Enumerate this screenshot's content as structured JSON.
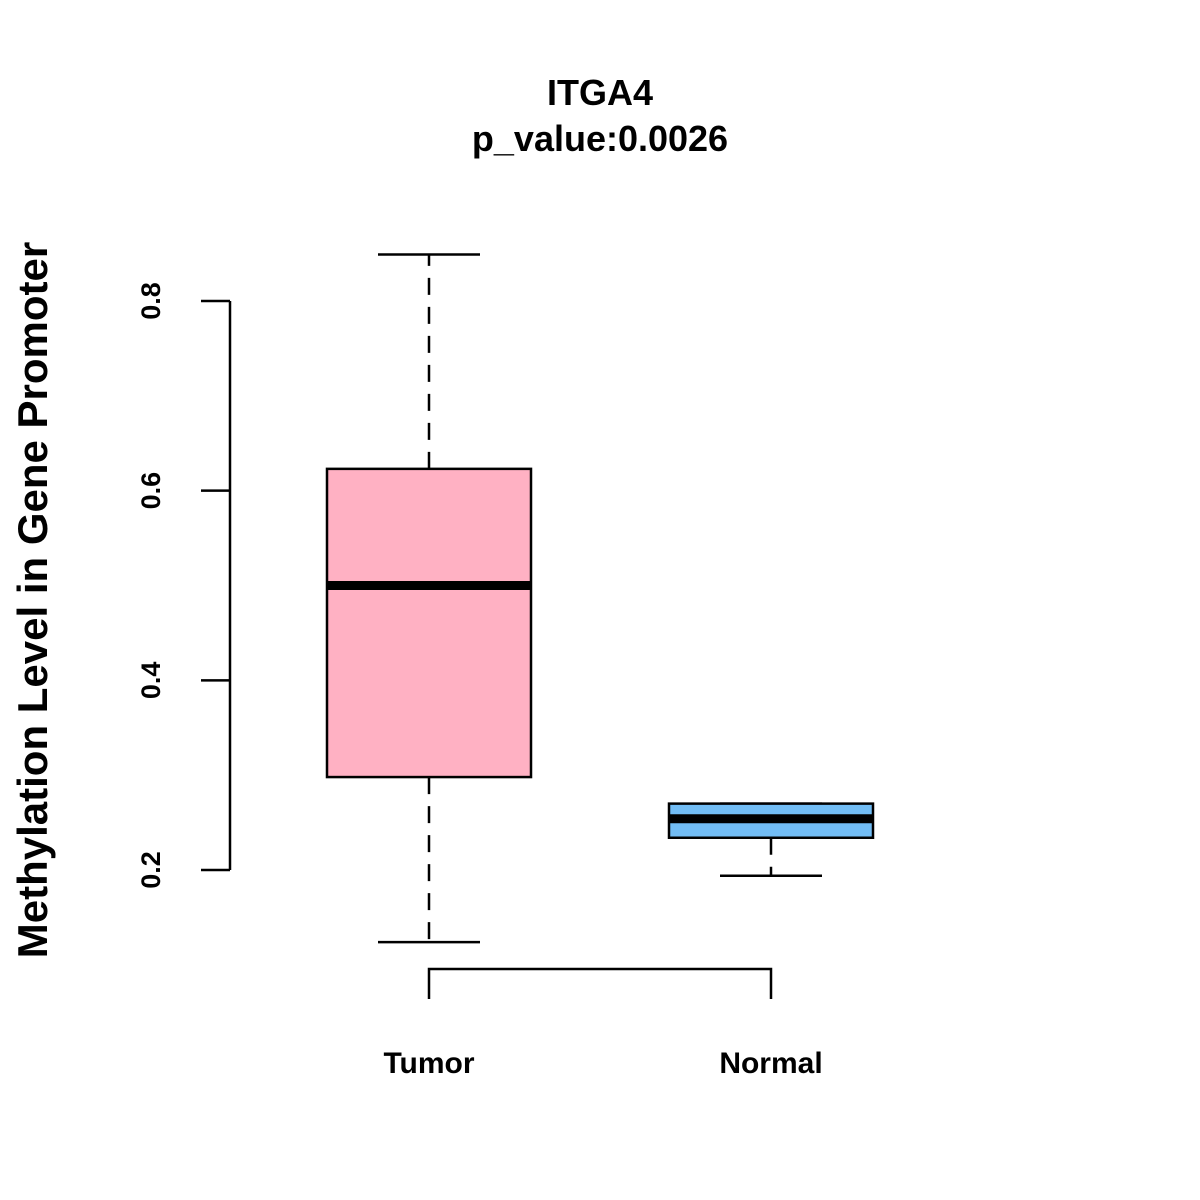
{
  "chart_data": {
    "type": "boxplot",
    "title": "ITGA4",
    "subtitle": "p_value:0.0026",
    "xlabel": "",
    "ylabel": "Methylation Level in Gene Promoter",
    "ylim": [
      0.2,
      0.8
    ],
    "yticks": [
      0.2,
      0.4,
      0.6,
      0.8
    ],
    "ytick_labels": [
      "0.2",
      "0.4",
      "0.6",
      "0.8"
    ],
    "categories": [
      "Tumor",
      "Normal"
    ],
    "boxes": [
      {
        "name": "Tumor",
        "min": 0.124,
        "q1": 0.298,
        "median": 0.5,
        "q3": 0.623,
        "max": 0.849,
        "color": "#ffb1c3"
      },
      {
        "name": "Normal",
        "min": 0.194,
        "q1": 0.234,
        "median": 0.254,
        "q3": 0.27,
        "max": 0.27,
        "color": "#72bdf5"
      }
    ],
    "bracket": {
      "from": "Tumor",
      "to": "Normal"
    },
    "grid": false,
    "legend": "none"
  }
}
